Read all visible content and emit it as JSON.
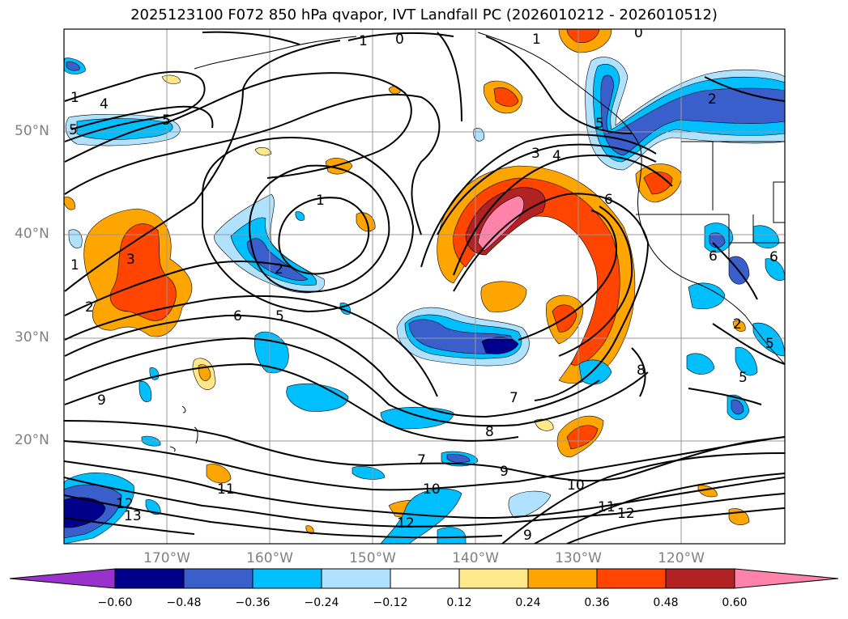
{
  "title": "2025123100 F072 850 hPa qvapor, IVT Landfall PC (2026010212 - 2026010512)",
  "lat_labels": [
    "50°N",
    "40°N",
    "30°N",
    "20°N"
  ],
  "lon_labels": [
    "170°W",
    "160°W",
    "150°W",
    "140°W",
    "130°W",
    "120°W"
  ],
  "colorbar": {
    "ticks": [
      "−0.60",
      "−0.48",
      "−0.36",
      "−0.24",
      "−0.12",
      "0.12",
      "0.24",
      "0.36",
      "0.48",
      "0.60"
    ],
    "colors": [
      "#9932cc",
      "#00008b",
      "#3a5fcd",
      "#00bfff",
      "#b0e2ff",
      "#ffffff",
      "#ffe88a",
      "#ffa500",
      "#ff4500",
      "#b22222",
      "#ff82ab"
    ]
  },
  "contour_labels": [
    "0",
    "1",
    "1",
    "0",
    "1",
    "4",
    "5",
    "5",
    "2",
    "5",
    "1",
    "2",
    "3",
    "4",
    "6",
    "1",
    "2",
    "3",
    "6",
    "5",
    "6",
    "6",
    "5",
    "9",
    "8",
    "7",
    "8",
    "7",
    "9",
    "10",
    "10",
    "11",
    "12",
    "12",
    "13",
    "11",
    "12",
    "9",
    "2",
    "5"
  ]
}
